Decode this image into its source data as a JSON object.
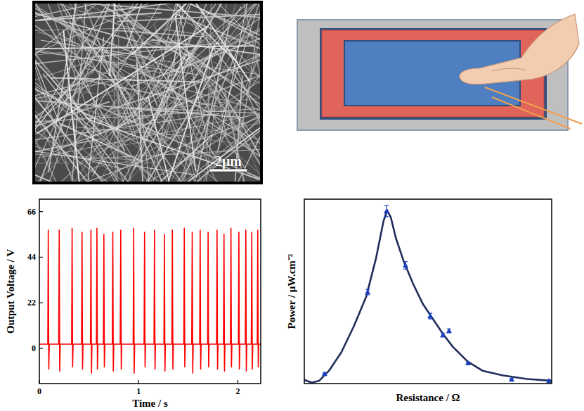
{
  "sem_image": {
    "scale_bar": "2μm"
  },
  "chart_data": [
    {
      "type": "line",
      "x_label": "Time / s",
      "y_label": "Output Voltage / V",
      "xlim": [
        0,
        2.23
      ],
      "xticks": [
        0,
        1,
        2
      ],
      "ylim": [
        -17,
        72
      ],
      "yticks": [
        0,
        22,
        44,
        66
      ],
      "grid": false,
      "x": [
        0,
        0.085,
        0.09,
        0.095,
        0.1,
        0.195,
        0.2,
        0.205,
        0.21,
        0.325,
        0.33,
        0.335,
        0.34,
        0.425,
        0.43,
        0.435,
        0.44,
        0.515,
        0.52,
        0.525,
        0.53,
        0.575,
        0.58,
        0.585,
        0.59,
        0.645,
        0.65,
        0.655,
        0.66,
        0.735,
        0.74,
        0.745,
        0.75,
        0.815,
        0.82,
        0.825,
        0.83,
        0.945,
        0.95,
        0.955,
        0.96,
        1.055,
        1.06,
        1.065,
        1.07,
        1.155,
        1.16,
        1.165,
        1.17,
        1.255,
        1.26,
        1.265,
        1.27,
        1.335,
        1.34,
        1.345,
        1.35,
        1.455,
        1.46,
        1.465,
        1.47,
        1.535,
        1.54,
        1.545,
        1.55,
        1.615,
        1.62,
        1.625,
        1.63,
        1.695,
        1.7,
        1.705,
        1.71,
        1.785,
        1.79,
        1.795,
        1.8,
        1.855,
        1.86,
        1.865,
        1.87,
        1.925,
        1.93,
        1.935,
        1.94,
        2.005,
        2.01,
        2.015,
        2.02,
        2.075,
        2.08,
        2.085,
        2.09,
        2.135,
        2.14,
        2.145,
        2.15,
        2.195,
        2.2,
        2.205,
        2.21,
        2.23
      ],
      "series": [
        {
          "type": "line",
          "color": "#ff0000",
          "values": [
            2,
            2,
            57,
            -10,
            2,
            2,
            57,
            -11,
            2,
            2,
            58,
            -9,
            2,
            2,
            56,
            -10,
            2,
            2,
            57,
            -12,
            2,
            2,
            58,
            -10,
            2,
            2,
            55,
            -9,
            2,
            2,
            56,
            -11,
            2,
            2,
            57,
            -10,
            2,
            2,
            58,
            -12,
            2,
            2,
            56,
            -9,
            2,
            2,
            57,
            -10,
            2,
            2,
            55,
            -11,
            2,
            2,
            57,
            -10,
            2,
            2,
            58,
            -9,
            2,
            2,
            56,
            -12,
            2,
            2,
            57,
            -10,
            2,
            2,
            56,
            -9,
            2,
            2,
            57,
            -10,
            2,
            2,
            55,
            -11,
            2,
            2,
            58,
            -9,
            2,
            2,
            56,
            -10,
            2,
            2,
            57,
            -11,
            2,
            2,
            56,
            -10,
            2,
            2,
            57,
            -9,
            2,
            2
          ]
        }
      ]
    },
    {
      "type": "scatter",
      "x_label": "Resistance / Ω",
      "y_label": "Power / μW.cm⁻²",
      "xlim": [
        0,
        100
      ],
      "ylim": [
        0,
        100
      ],
      "tick_labels": false,
      "grid": false,
      "series": [
        {
          "type": "line",
          "color": "#1f2d5a",
          "x": [
            0,
            3,
            6,
            10,
            15,
            20,
            25,
            29,
            32,
            33.5,
            35,
            37,
            40,
            44,
            48,
            52,
            56,
            60,
            66,
            72,
            80,
            90,
            100
          ],
          "values": [
            2,
            0.5,
            1.5,
            7,
            17,
            31,
            47,
            68,
            88,
            94,
            90,
            79,
            67,
            54,
            43,
            35,
            27,
            20,
            12,
            7,
            4.5,
            2.5,
            1.5
          ]
        },
        {
          "type": "scatter",
          "marker": "triangle",
          "color": "#1a3fbf",
          "x": [
            8.2,
            25.6,
            33.2,
            40.9,
            50.9,
            56,
            58.5,
            66.2,
            83.8,
            98.9
          ],
          "values": [
            5.3,
            49.6,
            93.5,
            64.1,
            36.6,
            26.3,
            28.6,
            11.1,
            2.3,
            1.5
          ],
          "errors": [
            0.5,
            1.5,
            3,
            2,
            1.5,
            1,
            1,
            0.5,
            0.5,
            0.5
          ]
        }
      ]
    }
  ]
}
